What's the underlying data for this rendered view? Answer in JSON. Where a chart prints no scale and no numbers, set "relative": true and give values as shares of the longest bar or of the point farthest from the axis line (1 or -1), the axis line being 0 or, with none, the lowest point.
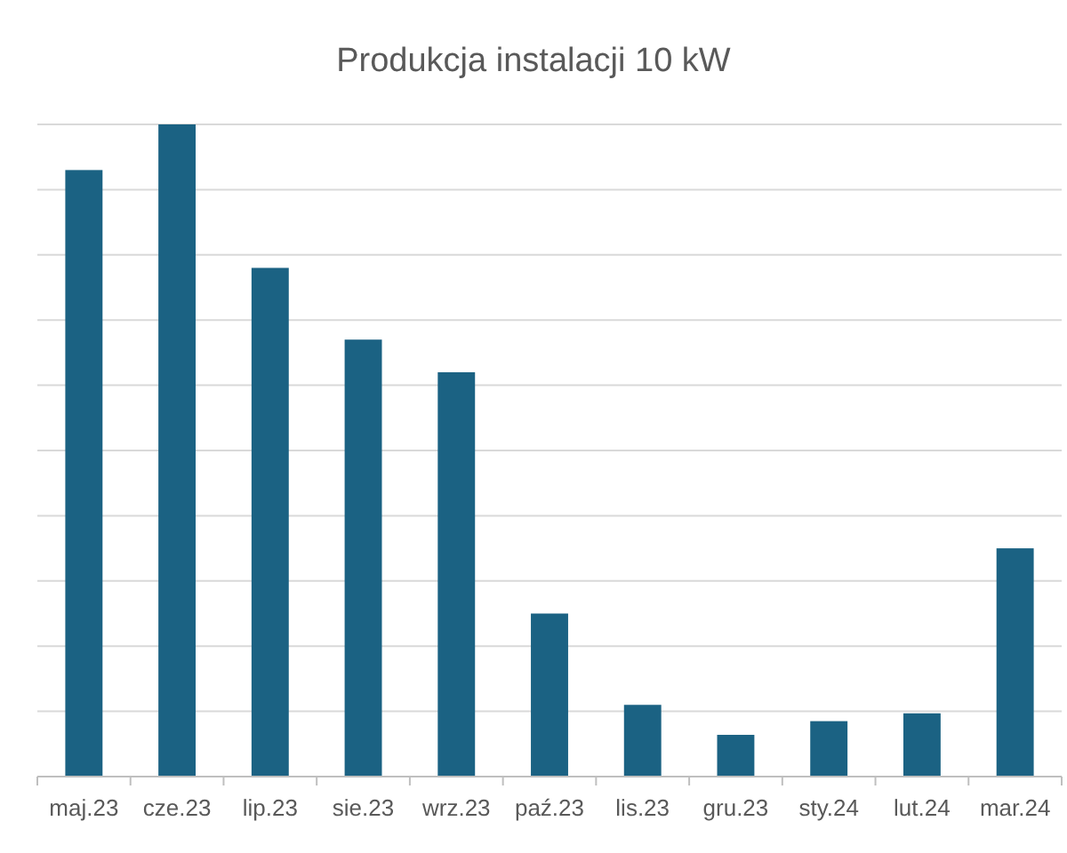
{
  "chart_data": {
    "type": "bar",
    "title": "Produkcja instalacji 10 kW",
    "relative": true,
    "grid": "y",
    "color": "#1b6283",
    "categories": [
      "maj.23",
      "cze.23",
      "lip.23",
      "sie.23",
      "wrz.23",
      "paź.23",
      "lis.23",
      "gru.23",
      "sty.24",
      "lut.24",
      "mar.24"
    ],
    "values": [
      0.93,
      1,
      0.78,
      0.67,
      0.62,
      0.25,
      0.11,
      0.064,
      0.085,
      0.097,
      0.35
    ]
  }
}
